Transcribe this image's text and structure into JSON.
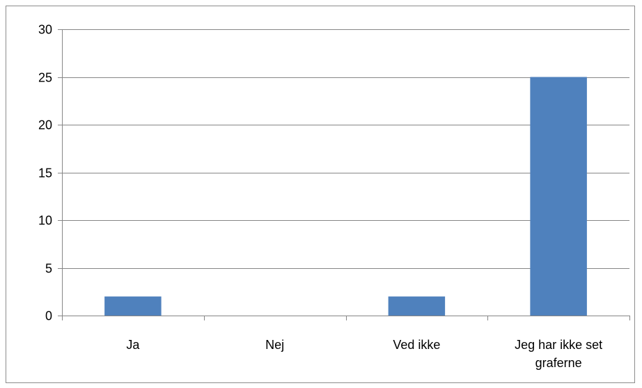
{
  "chart_data": {
    "type": "bar",
    "title": "",
    "xlabel": "",
    "ylabel": "",
    "categories": [
      "Ja",
      "Nej",
      "Ved ikke",
      "Jeg har ikke set graferne"
    ],
    "category_lines": [
      [
        "Ja"
      ],
      [
        "Nej"
      ],
      [
        "Ved ikke"
      ],
      [
        "Jeg har ikke set",
        "graferne"
      ]
    ],
    "values": [
      2,
      0,
      2,
      25
    ],
    "ylim": [
      0,
      30
    ],
    "yticks": [
      "0",
      "5",
      "10",
      "15",
      "20",
      "25",
      "30"
    ],
    "grid": true,
    "legend": "none",
    "colors": {
      "bar": "#4f81bd",
      "grid": "#868686",
      "axis": "#868686"
    }
  }
}
